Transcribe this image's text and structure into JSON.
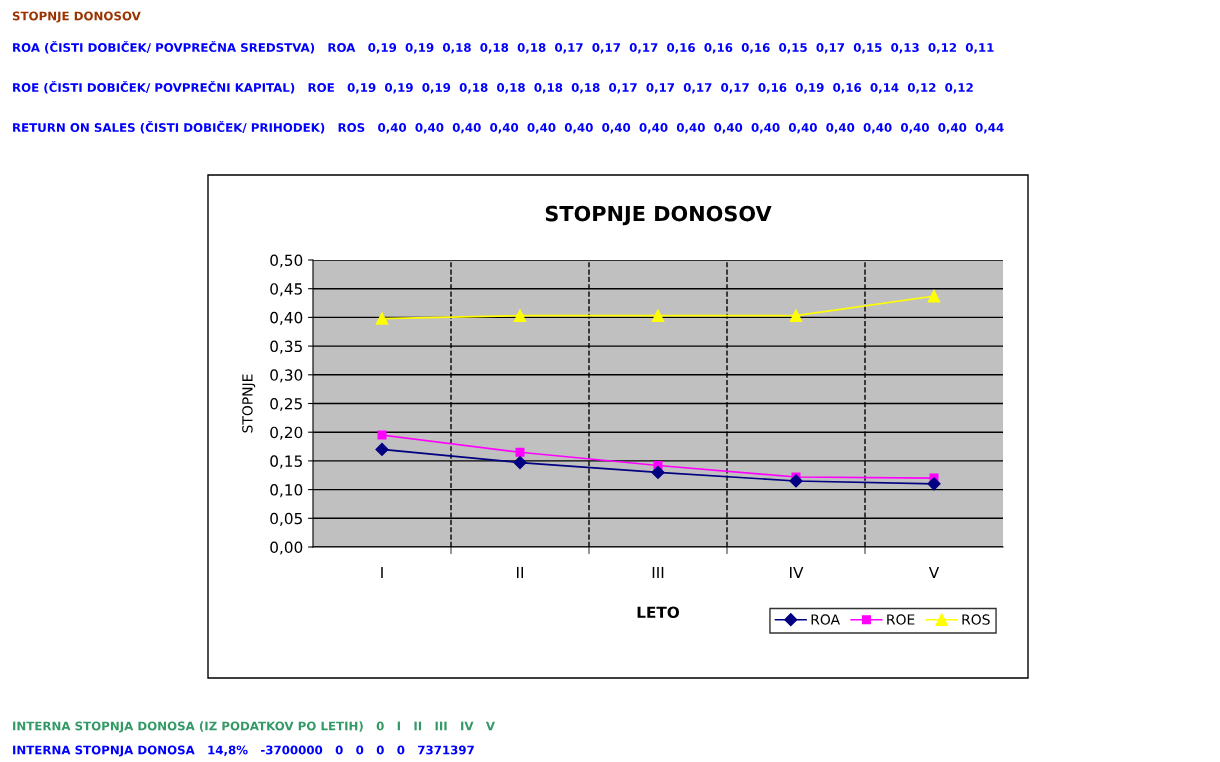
{
  "chart_data": {
    "type": "line",
    "title": "STOPNJE DONOSOV",
    "xlabel": "LETO",
    "ylabel": "STOPNJE",
    "categories": [
      "I",
      "II",
      "III",
      "IV",
      "V"
    ],
    "series": [
      {
        "name": "ROA",
        "color": "#000080",
        "marker": "diamond",
        "values": [
          0.17,
          0.147,
          0.13,
          0.115,
          0.11
        ]
      },
      {
        "name": "ROE",
        "color": "#ff00ff",
        "marker": "square",
        "values": [
          0.195,
          0.165,
          0.142,
          0.122,
          0.12
        ]
      },
      {
        "name": "ROS",
        "color": "#ffff00",
        "marker": "triangle",
        "values": [
          0.398,
          0.403,
          0.403,
          0.403,
          0.437
        ]
      }
    ],
    "ylim": [
      0,
      0.5
    ],
    "yticks": [
      {
        "value": 0,
        "label": "0,00"
      },
      {
        "value": 0.05,
        "label": "0,05"
      },
      {
        "value": 0.1,
        "label": "0,10"
      },
      {
        "value": 0.15,
        "label": "0,15"
      },
      {
        "value": 0.2,
        "label": "0,20"
      },
      {
        "value": 0.25,
        "label": "0,25"
      },
      {
        "value": 0.3,
        "label": "0,30"
      },
      {
        "value": 0.35,
        "label": "0,35"
      },
      {
        "value": 0.4,
        "label": "0,40"
      },
      {
        "value": 0.45,
        "label": "0,45"
      },
      {
        "value": 0.5,
        "label": "0,50"
      }
    ],
    "grid": "y",
    "legend": "bottom right",
    "line_style": "solid",
    "annotations": [
      "STOPNJE DONOSOV",
      "ROA (ČISTI DOBIČEK/ POVPREČNA SREDSTVA)   ROA   0,19  0,19  0,18  0,18  0,18  0,17  0,17  0,17  0,16  0,16  0,16  0,15  0,17  0,15  0,13  0,12  0,11",
      "ROE (ČISTI DOBIČEK/ POVPREČNI KAPITAL)   ROE   0,19  0,19  0,19  0,18  0,18  0,18  0,18  0,17  0,17  0,17  0,17  0,16  0,19  0,16  0,14  0,12  0,12",
      "RETURN ON SALES (ČISTI DOBIČEK/ PRIHODEK)   ROS   0,40  0,40  0,40  0,40  0,40  0,40  0,40  0,40  0,40  0,40  0,40  0,40  0,40  0,40  0,40  0,40  0,44",
      "INTERNA STOPNJA DONOSA (IZ PODATKOV PO LETIH)   0   I   II   III   IV   V",
      "INTERNA STOPNJA DONOSA   14,8%   -3700000   0   0   0   0   7371397"
    ]
  }
}
